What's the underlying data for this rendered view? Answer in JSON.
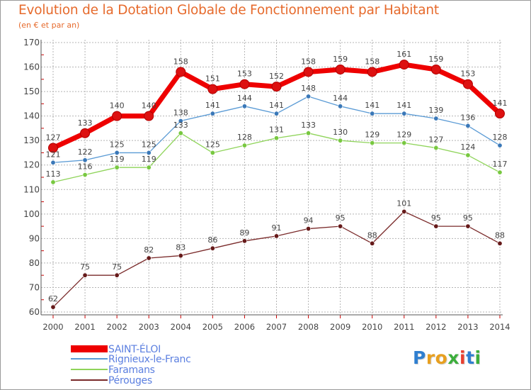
{
  "title": "Evolution de la Dotation Globale de Fonctionnement par Habitant",
  "subtitle": "(en € et par an)",
  "colors": {
    "title": "#e66a2c",
    "grid": "#b4b4b4",
    "axis": "#555555",
    "tick_mark": "#cc0000",
    "label": "#444444"
  },
  "chart_data": {
    "type": "line",
    "title": "Evolution de la Dotation Globale de Fonctionnement par Habitant",
    "subtitle": "(en € et par an)",
    "xlabel": "",
    "ylabel": "",
    "x": [
      "2000",
      "2001",
      "2002",
      "2003",
      "2004",
      "2005",
      "2006",
      "2007",
      "2008",
      "2009",
      "2010",
      "2011",
      "2012",
      "2013",
      "2014"
    ],
    "ylim": [
      60,
      170
    ],
    "yticks": [
      "60",
      "70",
      "80",
      "90",
      "100",
      "110",
      "120",
      "130",
      "140",
      "150",
      "160",
      "170"
    ],
    "grid": true,
    "legend_position": "bottom-left",
    "series": [
      {
        "name": "SAINT-ÉLOI",
        "color": "#ee0000",
        "marker": "#dd1111",
        "emphasis": true,
        "values": [
          127,
          133,
          140,
          140,
          158,
          151,
          153,
          152,
          158,
          159,
          158,
          161,
          159,
          153,
          141
        ],
        "labels": [
          "127",
          "133",
          "140",
          "140",
          "158",
          "151",
          "153",
          "152",
          "158",
          "159",
          "158",
          "161",
          "159",
          "153",
          "141"
        ]
      },
      {
        "name": "Rignieux-le-Franc",
        "color": "#5b9bd5",
        "marker": "#3a78b8",
        "emphasis": false,
        "values": [
          121,
          122,
          125,
          125,
          138,
          141,
          144,
          141,
          148,
          144,
          141,
          141,
          139,
          136,
          128
        ],
        "labels": [
          "121",
          "122",
          "125",
          "125",
          "138",
          "141",
          "144",
          "141",
          "148",
          "144",
          "141",
          "141",
          "139",
          "136",
          "128"
        ]
      },
      {
        "name": "Faramans",
        "color": "#8fd45a",
        "marker": "#78c840",
        "emphasis": false,
        "values": [
          113,
          116,
          119,
          119,
          133,
          125,
          128,
          131,
          133,
          130,
          129,
          129,
          127,
          124,
          117
        ],
        "labels": [
          "113",
          "116",
          "119",
          "119",
          "133",
          "125",
          "128",
          "131",
          "133",
          "130",
          "129",
          "129",
          "127",
          "124",
          "117"
        ]
      },
      {
        "name": "Pérouges",
        "color": "#7a2a2a",
        "marker": "#661a1a",
        "emphasis": false,
        "values": [
          62,
          75,
          75,
          82,
          83,
          86,
          89,
          91,
          94,
          95,
          88,
          101,
          95,
          95,
          88
        ],
        "labels": [
          "62",
          "75",
          "75",
          "82",
          "83",
          "86",
          "89",
          "91",
          "94",
          "95",
          "88",
          "101",
          "95",
          "95",
          "88"
        ]
      }
    ]
  },
  "legend": [
    {
      "label": "SAINT-ÉLOI",
      "color": "#ee0000",
      "label_color": "#5b7fe0"
    },
    {
      "label": "Rignieux-le-Franc",
      "color": "#5b9bd5",
      "label_color": "#5b7fe0"
    },
    {
      "label": "Faramans",
      "color": "#8fd45a",
      "label_color": "#5b7fe0"
    },
    {
      "label": "Pérouges",
      "color": "#7a2a2a",
      "label_color": "#5b7fe0"
    }
  ],
  "logo": {
    "letters": [
      "P",
      "r",
      "o",
      "x",
      "i",
      "t",
      "i"
    ],
    "colors": [
      "#2f7fd0",
      "#e8a020",
      "#e8a020",
      "#3cae3c",
      "#e84030",
      "#2f7fd0",
      "#3cae3c"
    ]
  }
}
